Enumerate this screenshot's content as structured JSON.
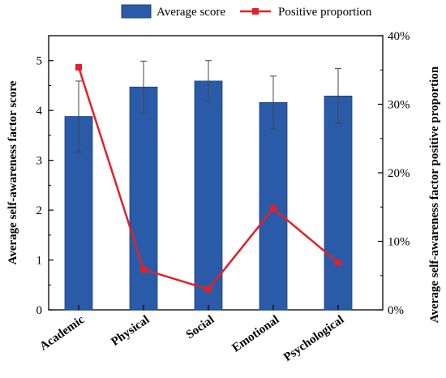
{
  "chart_data": {
    "type": "bar",
    "categories": [
      "Academic",
      "Physical",
      "Social",
      "Emotional",
      "Psychological"
    ],
    "series": [
      {
        "name": "Average score",
        "axis": "left",
        "kind": "bar",
        "values": [
          3.88,
          4.47,
          4.59,
          4.16,
          4.29
        ],
        "error": [
          0.71,
          0.52,
          0.41,
          0.53,
          0.55
        ],
        "color": "#2A5BA8"
      },
      {
        "name": "Positive proportion",
        "axis": "right",
        "kind": "line",
        "values": [
          35.4,
          5.9,
          3.0,
          14.8,
          6.9
        ],
        "color": "#E0212B"
      }
    ],
    "ylabel": "Average  self-awareness factor score",
    "y2label": "Average self-awareness factor positive proportion",
    "ylim": [
      0,
      5.5
    ],
    "y2lim": [
      0,
      40
    ],
    "yticks": [
      "0",
      "1",
      "2",
      "3",
      "4",
      "5"
    ],
    "y2ticks": [
      "0%",
      "10%",
      "20%",
      "30%",
      "40%"
    ],
    "legend_position": "top",
    "grid": false
  }
}
